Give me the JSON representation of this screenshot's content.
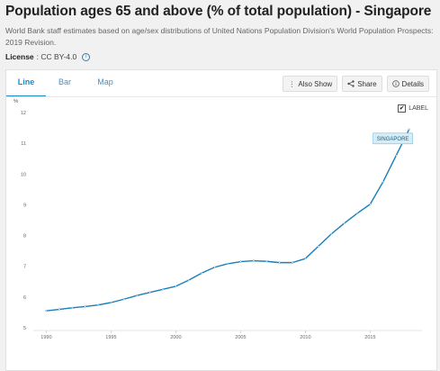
{
  "header": {
    "title": "Population ages 65 and above (% of total population) - Singapore",
    "description": "World Bank staff estimates based on age/sex distributions of United Nations Population Division's World Population Prospects: 2019 Revision.",
    "license_label": "License",
    "license_value": ": CC BY-4.0"
  },
  "tabs": [
    {
      "label": "Line",
      "active": true
    },
    {
      "label": "Bar",
      "active": false
    },
    {
      "label": "Map",
      "active": false
    }
  ],
  "toolbar": {
    "also_show_label": "Also Show",
    "share_label": "Share",
    "details_label": "Details"
  },
  "label_toggle": {
    "checked_mark": "✔",
    "text": "LABEL"
  },
  "colors": {
    "line": "#1a7fb8",
    "label_bg": "#d5edf7",
    "label_border": "#7cc0e0",
    "accent": "#1e88c8"
  },
  "chart_data": {
    "type": "line",
    "ylabel": "%",
    "ylim": [
      5,
      12
    ],
    "xlim": [
      1989,
      2019
    ],
    "yticks": [
      5,
      6,
      7,
      8,
      9,
      10,
      11,
      12
    ],
    "xticks": [
      1990,
      1995,
      2000,
      2005,
      2010,
      2015
    ],
    "grid": false,
    "series": [
      {
        "name": "SINGAPORE",
        "x": [
          1990,
          1991,
          1992,
          1993,
          1994,
          1995,
          1996,
          1997,
          1998,
          1999,
          2000,
          2001,
          2002,
          2003,
          2004,
          2005,
          2006,
          2007,
          2008,
          2009,
          2010,
          2011,
          2012,
          2013,
          2014,
          2015,
          2016,
          2017,
          2018
        ],
        "values": [
          5.55,
          5.6,
          5.65,
          5.69,
          5.74,
          5.82,
          5.93,
          6.05,
          6.15,
          6.25,
          6.35,
          6.55,
          6.78,
          6.97,
          7.08,
          7.15,
          7.18,
          7.16,
          7.12,
          7.12,
          7.25,
          7.65,
          8.05,
          8.4,
          8.72,
          9.02,
          9.75,
          10.6,
          11.45
        ]
      }
    ]
  }
}
